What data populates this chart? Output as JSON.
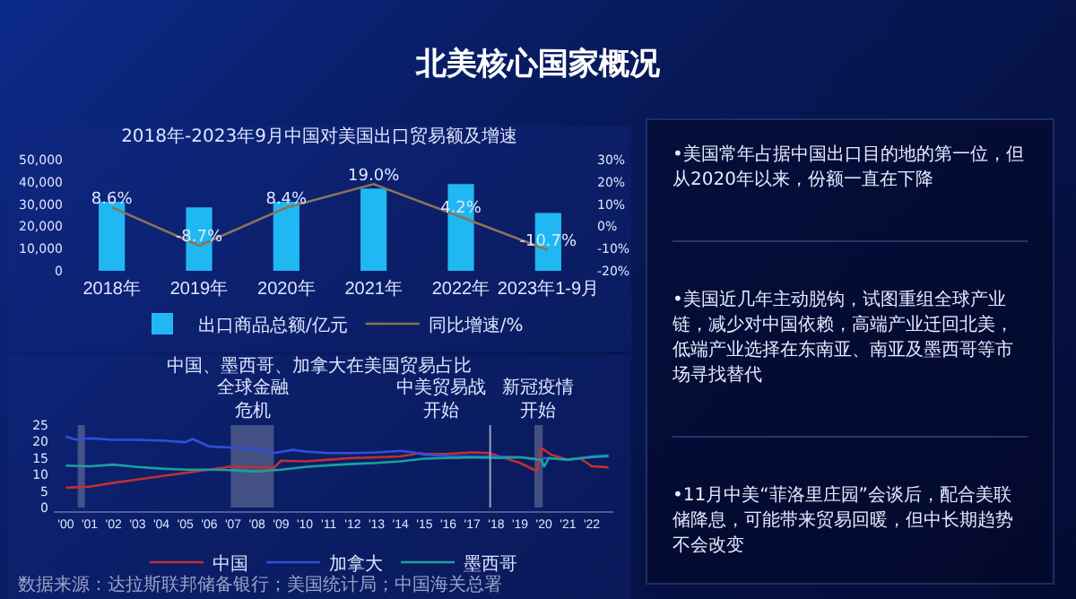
{
  "chart_data": [
    {
      "type": "bar",
      "title": "2018年-2023年9月中国对美国出口贸易额及增速",
      "categories": [
        "2018年",
        "2019年",
        "2020年",
        "2021年",
        "2022年",
        "2023年1-9月"
      ],
      "series": [
        {
          "name": "出口商品总额/亿元",
          "type": "bar",
          "color": "#1fb8f2",
          "values": [
            31000,
            28500,
            31000,
            37000,
            39000,
            26000
          ]
        },
        {
          "name": "同比增速/%",
          "type": "line",
          "axis": "y2",
          "color": "#8a7458",
          "values": [
            8.6,
            -8.7,
            8.4,
            19.0,
            4.2,
            -10.7
          ],
          "value_labels": [
            "8.6%",
            "-8.7%",
            "8.4%",
            "19.0%",
            "4.2%",
            "-10.7%"
          ]
        }
      ],
      "ylim": [
        0,
        50000
      ],
      "yticks": [
        0,
        {
          "value": 10000,
          "label": "10,000"
        },
        {
          "value": 20000,
          "label": "20,000"
        },
        {
          "value": 30000,
          "label": "30,000"
        },
        {
          "value": 40000,
          "label": "40,000"
        },
        {
          "value": 50000,
          "label": "50,000"
        }
      ],
      "y2lim": [
        -20,
        30
      ],
      "y2ticks": [
        {
          "value": -20,
          "label": "-20%"
        },
        {
          "value": -10,
          "label": "-10%"
        },
        {
          "value": 0,
          "label": "0%"
        },
        {
          "value": 10,
          "label": "10%"
        },
        {
          "value": 20,
          "label": "20%"
        },
        {
          "value": 30,
          "label": "30%"
        }
      ],
      "legend": "bottom",
      "grid": false
    },
    {
      "type": "line",
      "title": "中国、墨西哥、加拿大在美国贸易占比",
      "series": [
        {
          "name": "中国",
          "color": "#c03030",
          "x": [
            2000,
            2001,
            2002,
            2003,
            2004,
            2005,
            2006,
            2007,
            2008,
            2008.7,
            2009,
            2010,
            2011,
            2012,
            2013,
            2014,
            2014.8,
            2015,
            2016,
            2017,
            2017.7,
            2018,
            2019,
            2019.7,
            2019.9,
            2020.3,
            2021,
            2021.5,
            2022,
            2022.7
          ],
          "values": [
            6,
            6.3,
            7.5,
            8.5,
            9.5,
            10.5,
            11.5,
            12.5,
            12.2,
            12,
            14.2,
            14,
            14.5,
            15,
            15.2,
            15.5,
            16.5,
            16.2,
            16.3,
            16.7,
            16.5,
            15.8,
            13.5,
            11,
            18,
            16,
            14.5,
            15,
            12.5,
            12.2
          ]
        },
        {
          "name": "加拿大",
          "color": "#3050d8",
          "x": [
            2000,
            2000.4,
            2001,
            2002,
            2003,
            2004,
            2005,
            2005.3,
            2006,
            2008,
            2008.7,
            2009.5,
            2010,
            2011,
            2012,
            2013,
            2014,
            2014.5,
            2015,
            2016,
            2017,
            2018,
            2019,
            2019.9,
            2020,
            2021,
            2022,
            2022.7
          ],
          "values": [
            21.5,
            20.6,
            21,
            20.5,
            20.5,
            20.3,
            19.8,
            20.8,
            18.5,
            17.8,
            16.5,
            17.5,
            17,
            16.5,
            16.5,
            16.7,
            17.2,
            16.8,
            16,
            15.6,
            15.5,
            15.5,
            15.3,
            14.5,
            15,
            14.5,
            15.5,
            15.8
          ]
        },
        {
          "name": "墨西哥",
          "color": "#1aa0a0",
          "x": [
            2000,
            2001,
            2002,
            2003,
            2004,
            2005,
            2006,
            2007,
            2008,
            2009,
            2010,
            2011,
            2012,
            2013,
            2014,
            2015,
            2016,
            2017,
            2018,
            2019,
            2019.9,
            2020,
            2020.2,
            2021,
            2022,
            2022.7
          ],
          "values": [
            12.7,
            12.5,
            13,
            12.3,
            11.8,
            11.5,
            11.5,
            11.3,
            10.9,
            11.5,
            12.3,
            12.8,
            13.2,
            13.5,
            14,
            14.8,
            15,
            15.2,
            15,
            15.2,
            14.5,
            12.3,
            15,
            14.5,
            15.3,
            15.6
          ]
        }
      ],
      "xlim": [
        1999.5,
        2022.9
      ],
      "xticks": [
        {
          "value": 2000,
          "label": "'00"
        },
        {
          "value": 2001,
          "label": "'01"
        },
        {
          "value": 2002,
          "label": "'02"
        },
        {
          "value": 2003,
          "label": "'03"
        },
        {
          "value": 2004,
          "label": "'04"
        },
        {
          "value": 2005,
          "label": "'05"
        },
        {
          "value": 2006,
          "label": "'06"
        },
        {
          "value": 2007,
          "label": "'07"
        },
        {
          "value": 2008,
          "label": "'08"
        },
        {
          "value": 2009,
          "label": "'09"
        },
        {
          "value": 2010,
          "label": "'10"
        },
        {
          "value": 2011,
          "label": "'11"
        },
        {
          "value": 2012,
          "label": "'12"
        },
        {
          "value": 2013,
          "label": "'13"
        },
        {
          "value": 2014,
          "label": "'14"
        },
        {
          "value": 2015,
          "label": "'15"
        },
        {
          "value": 2016,
          "label": "'16"
        },
        {
          "value": 2017,
          "label": "'17"
        },
        {
          "value": 2018,
          "label": "'18"
        },
        {
          "value": 2019,
          "label": "'19"
        },
        {
          "value": 2020,
          "label": "'20"
        },
        {
          "value": 2021,
          "label": "'21"
        },
        {
          "value": 2022,
          "label": "'22"
        }
      ],
      "ylim": [
        0,
        25
      ],
      "yticks": [
        0,
        5,
        10,
        15,
        20,
        25
      ],
      "bands": [
        {
          "axis": "x",
          "from": 2000.5,
          "to": 2000.8,
          "color": "#8a90a8"
        },
        {
          "axis": "x",
          "from": 2006.9,
          "to": 2008.7,
          "color": "#8a90a8",
          "label": "全球金融危机"
        },
        {
          "axis": "x",
          "from": 2019.6,
          "to": 2019.95,
          "color": "#8a90a8",
          "label": "新冠疫情开始"
        }
      ],
      "ref_lines": [
        {
          "axis": "x",
          "value": 2017.75,
          "label": "中美贸易战开始",
          "color": "#9aa0b8"
        }
      ],
      "annotations": [
        "数据来源：达拉斯联邦储备银行；美国统计局；中国海关总署"
      ],
      "legend": "bottom",
      "grid": false
    },
    {
      "type": "other",
      "title": "北美核心国家概况",
      "annotations": [
        "•美国常年占据中国出口目的地的第一位，但从2020年以来，份额一直在下降",
        "•美国近几年主动脱钩，试图重组全球产业链，减少对中国依赖，高端产业迁回北美，低端产业选择在东南亚、南亚及墨西哥等市场寻找替代",
        "•11月中美“菲洛里庄园”会谈后，配合美联储降息，可能带来贸易回暖，但中长期趋势不会改变"
      ]
    }
  ]
}
